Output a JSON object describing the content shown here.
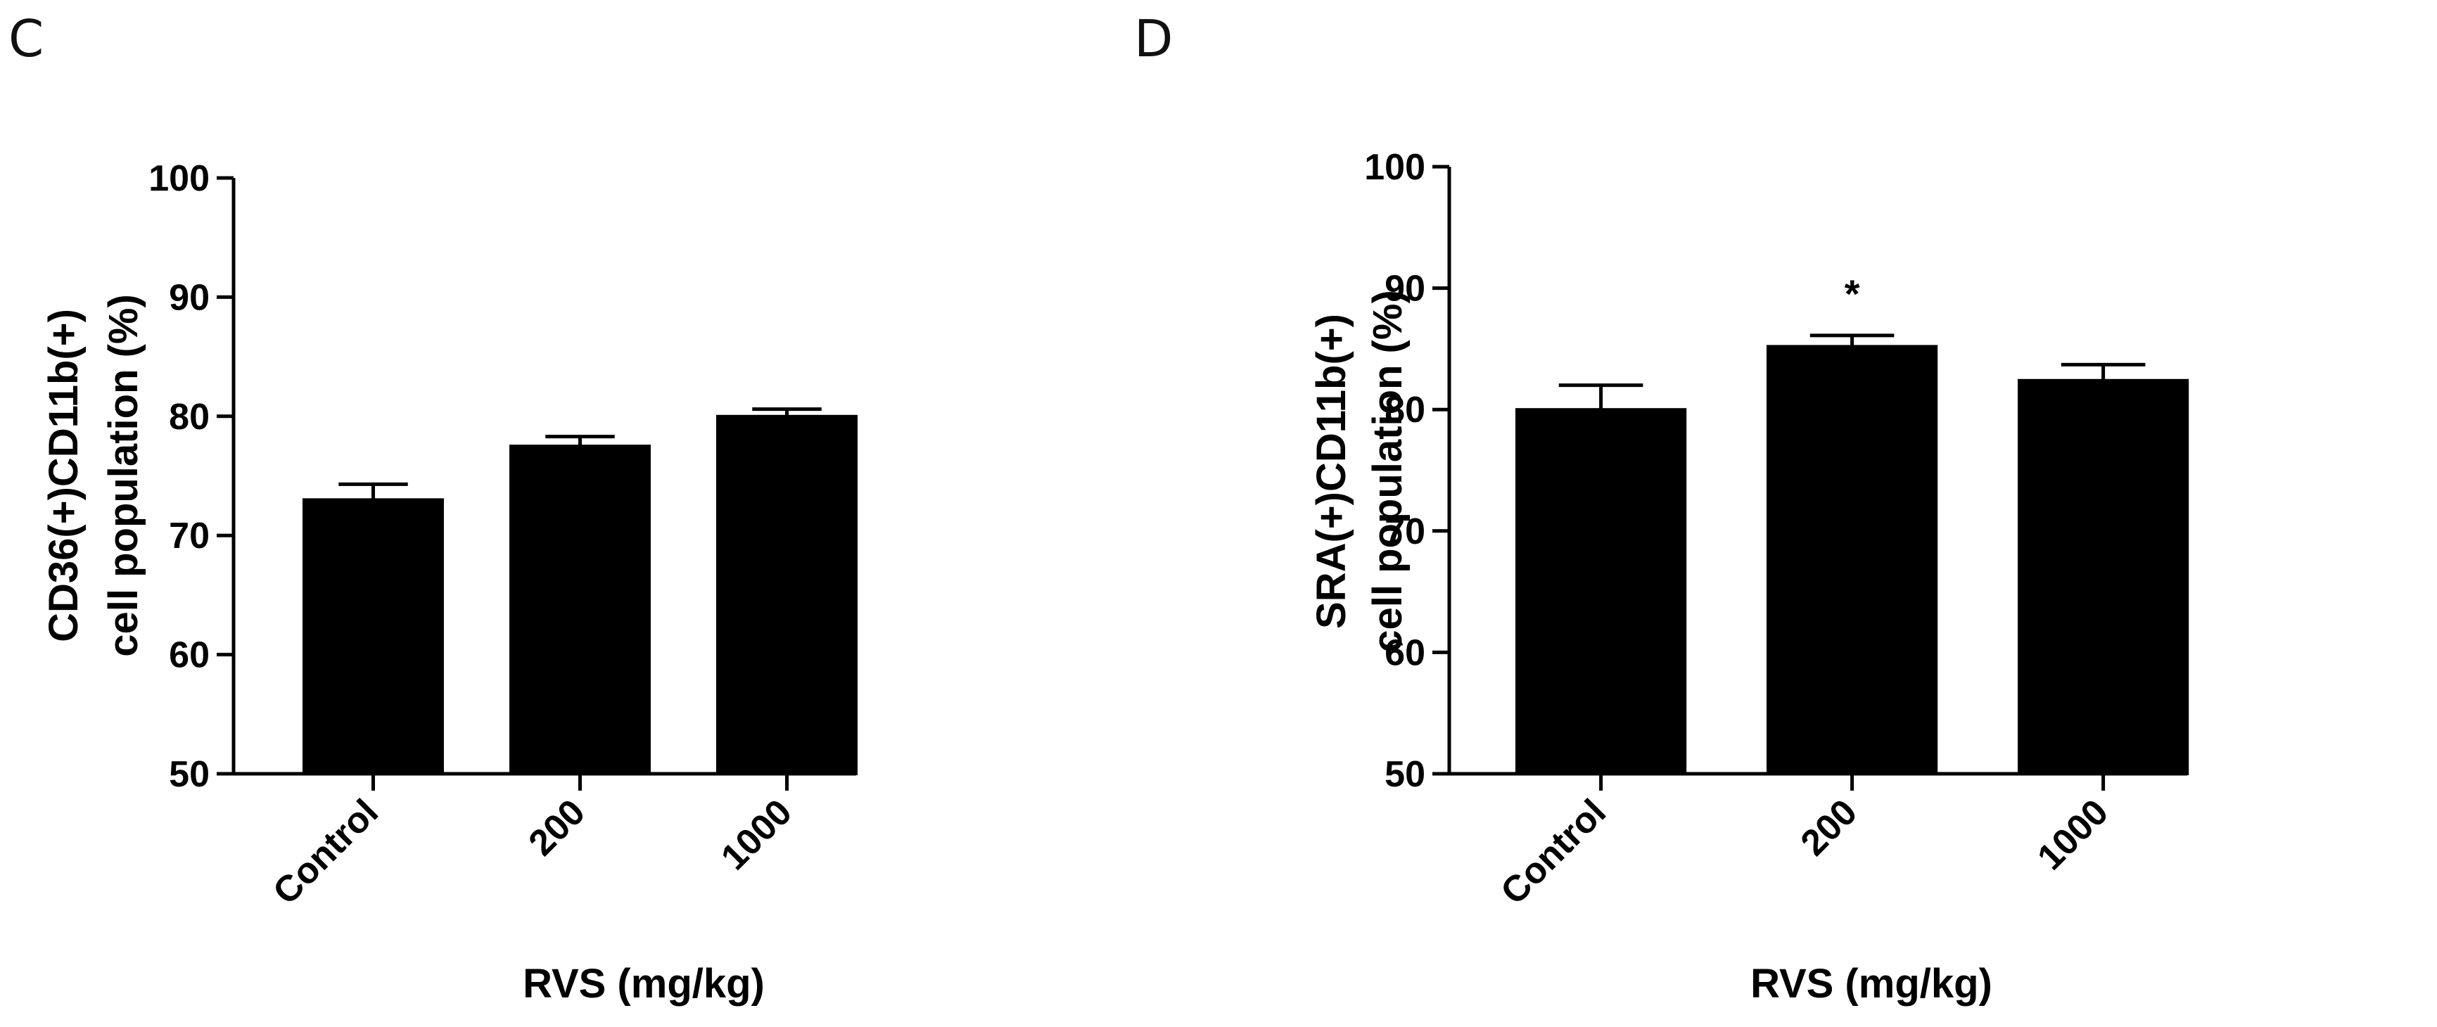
{
  "chart_data": [
    {
      "type": "bar",
      "panel": "C",
      "categories": [
        "Control",
        "200",
        "1000"
      ],
      "values": [
        73,
        77.5,
        80
      ],
      "errors": [
        1.3,
        0.8,
        0.6
      ],
      "annotations": [
        "",
        "",
        ""
      ],
      "xlabel": "RVS (mg/kg)",
      "ylabel_lines": [
        "CD36(+)CD11b(+)",
        "cell population (%)"
      ],
      "ylim": [
        50,
        100
      ],
      "yticks": [
        50,
        60,
        70,
        80,
        90,
        100
      ],
      "bar_color": "#000000",
      "grid": false
    },
    {
      "type": "bar",
      "panel": "D",
      "categories": [
        "Control",
        "200",
        "1000"
      ],
      "values": [
        80,
        85.2,
        82.4
      ],
      "errors": [
        2.0,
        0.9,
        1.3
      ],
      "annotations": [
        "",
        "*",
        ""
      ],
      "xlabel": "RVS (mg/kg)",
      "ylabel_lines": [
        "SRA(+)CD11b(+)",
        "cell population (%)"
      ],
      "ylim": [
        50,
        100
      ],
      "yticks": [
        50,
        60,
        70,
        80,
        90,
        100
      ],
      "bar_color": "#000000",
      "grid": false
    }
  ]
}
